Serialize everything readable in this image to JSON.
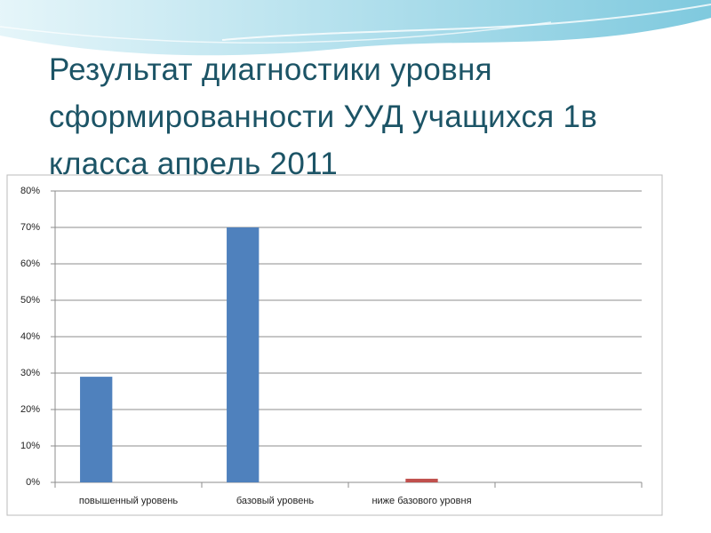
{
  "chart_data": {
    "type": "bar",
    "title": "Результат диагностики уровня сформированности УУД  учащихся 1в класса апрель 2011",
    "categories": [
      "повышенный уровень",
      "базовый уровень",
      "ниже базового уровня",
      null
    ],
    "series": [
      {
        "color": "#4f81bd",
        "values": [
          29,
          70,
          null,
          null
        ]
      },
      {
        "color": "#c0504d",
        "values": [
          null,
          null,
          1,
          null
        ]
      }
    ],
    "ylim": [
      0,
      80
    ],
    "yticks": [
      {
        "value": 0,
        "label": "0%"
      },
      {
        "value": 10,
        "label": "10%"
      },
      {
        "value": 20,
        "label": "20%"
      },
      {
        "value": 30,
        "label": "30%"
      },
      {
        "value": 40,
        "label": "40%"
      },
      {
        "value": 50,
        "label": "50%"
      },
      {
        "value": 60,
        "label": "60%"
      },
      {
        "value": 70,
        "label": "70%"
      },
      {
        "value": 80,
        "label": "80%"
      }
    ],
    "grid": true
  }
}
